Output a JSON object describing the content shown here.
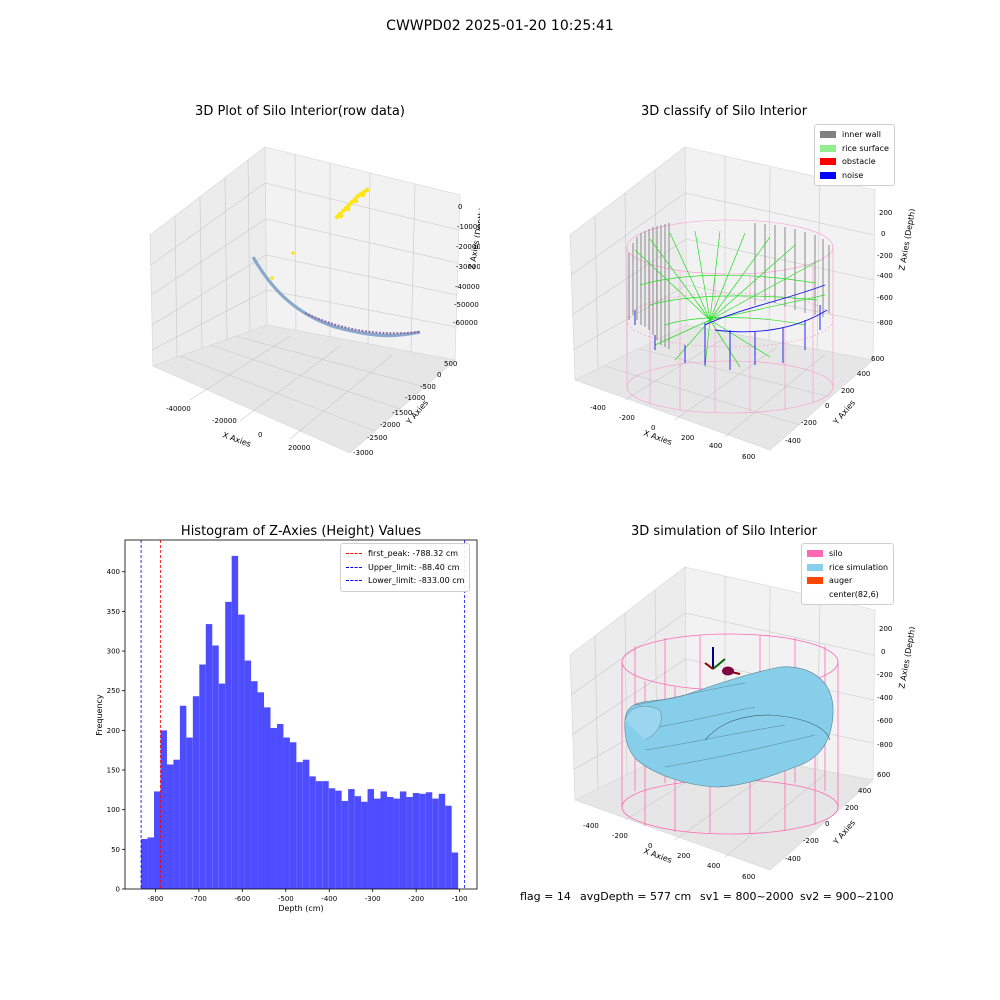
{
  "figure": {
    "suptitle": "CWWPD02 2025-01-20 10:25:41"
  },
  "panels": {
    "raw": {
      "title": "3D Plot of Silo Interior(row data)",
      "xlabel": "X Axies",
      "ylabel": "Y Axies",
      "zlabel": "Z Axies (Depth)",
      "xticks": [
        "-40000",
        "-20000",
        "0",
        "20000"
      ],
      "yticks": [
        "500",
        "0",
        "-500",
        "-1000",
        "-1500",
        "-2000",
        "-2500",
        "-3000"
      ],
      "zticks": [
        "0",
        "-10000",
        "-20000",
        "-30000",
        "-40000",
        "-50000",
        "-60000"
      ]
    },
    "classify": {
      "title": "3D classify of Silo Interior",
      "xlabel": "X Axies",
      "ylabel": "Y Axies",
      "zlabel": "Z Axies (Depth)",
      "xticks": [
        "-400",
        "-200",
        "0",
        "200",
        "400",
        "600"
      ],
      "yticks": [
        "600",
        "400",
        "200",
        "0",
        "-200",
        "-400"
      ],
      "zticks": [
        "200",
        "0",
        "-200",
        "-400",
        "-600",
        "-800"
      ],
      "legend": [
        {
          "label": "inner wall",
          "color": "#808080"
        },
        {
          "label": "rice surface",
          "color": "#90ee90"
        },
        {
          "label": "obstacle",
          "color": "#ff0000"
        },
        {
          "label": "noise",
          "color": "#0000ff"
        }
      ]
    },
    "simulation": {
      "title": "3D simulation of Silo Interior",
      "xlabel": "X Axies",
      "ylabel": "Y Axies",
      "zlabel": "Z Axies (Depth)",
      "xticks": [
        "-400",
        "-200",
        "0",
        "200",
        "400",
        "600"
      ],
      "yticks": [
        "600",
        "400",
        "200",
        "0",
        "-200",
        "-400"
      ],
      "zticks": [
        "200",
        "0",
        "-200",
        "-400",
        "-600",
        "-800"
      ],
      "legend": [
        {
          "label": "silo",
          "color": "#ff69b4"
        },
        {
          "label": "rice simulation",
          "color": "#87ceeb"
        },
        {
          "label": "auger",
          "color": "#ff4500"
        },
        {
          "label": "center(82,6)",
          "color": ""
        }
      ]
    }
  },
  "chart_data": {
    "type": "bar",
    "title": "Histogram of Z-Axies (Height) Values",
    "xlabel": "Depth (cm)",
    "ylabel": "Frequency",
    "xlim": [
      -870,
      -60
    ],
    "ylim": [
      0,
      440
    ],
    "xticks": [
      -800,
      -700,
      -600,
      -500,
      -400,
      -300,
      -200,
      -100
    ],
    "yticks": [
      0,
      50,
      100,
      150,
      200,
      250,
      300,
      350,
      400
    ],
    "bin_start": -833.0,
    "bin_width": 14.89,
    "values": [
      63,
      65,
      123,
      200,
      157,
      163,
      231,
      191,
      243,
      283,
      334,
      307,
      259,
      362,
      420,
      346,
      288,
      262,
      248,
      229,
      203,
      208,
      191,
      185,
      160,
      163,
      142,
      136,
      136,
      127,
      124,
      111,
      126,
      117,
      110,
      126,
      114,
      123,
      116,
      114,
      123,
      116,
      121,
      120,
      122,
      114,
      120,
      105,
      46
    ],
    "bar_color": "#4d4dff",
    "vlines": [
      {
        "label": "first_peak: -788.32 cm",
        "x": -788.32,
        "color": "#ff0000"
      },
      {
        "label": "Upper_limit: -88.40 cm",
        "x": -88.4,
        "color": "#0000ff"
      },
      {
        "label": "Lower_limit: -833.00 cm",
        "x": -833.0,
        "color": "#0000ff"
      }
    ],
    "legend_position": "upper right"
  },
  "status": {
    "flag": "flag = 14",
    "avg_depth": "avgDepth = 577 cm",
    "sv1": "sv1 = 800~2000",
    "sv2": "sv2 = 900~2100"
  }
}
